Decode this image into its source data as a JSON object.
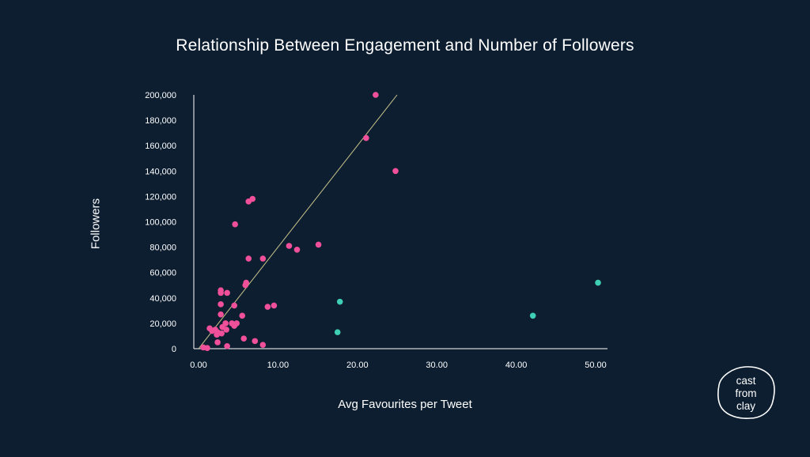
{
  "chart_data": {
    "type": "scatter",
    "title": "Relationship Between Engagement and Number of Followers",
    "xlabel": "Avg Favourites per Tweet",
    "ylabel": "Followers",
    "xlim": [
      0,
      50
    ],
    "ylim": [
      0,
      200000
    ],
    "x_ticks": [
      "0.00",
      "10.00",
      "20.00",
      "30.00",
      "40.00",
      "50.00"
    ],
    "y_ticks": [
      "0",
      "20,000",
      "40,000",
      "60,000",
      "80,000",
      "100,000",
      "120,000",
      "140,000",
      "160,000",
      "180,000",
      "200,000"
    ],
    "trendline": {
      "from": [
        0,
        0
      ],
      "to": [
        25,
        200000
      ],
      "color": "#c9c48a"
    },
    "series": [
      {
        "name": "pink",
        "color": "#f04f9a",
        "points": [
          [
            22.3,
            200000
          ],
          [
            21.1,
            166000
          ],
          [
            24.8,
            140000
          ],
          [
            6.8,
            118000
          ],
          [
            6.3,
            116000
          ],
          [
            4.6,
            98000
          ],
          [
            15.1,
            82000
          ],
          [
            11.4,
            81000
          ],
          [
            12.4,
            78000
          ],
          [
            8.1,
            71000
          ],
          [
            6.3,
            71000
          ],
          [
            6.0,
            52000
          ],
          [
            5.9,
            50000
          ],
          [
            2.8,
            46000
          ],
          [
            2.8,
            44000
          ],
          [
            3.6,
            44000
          ],
          [
            2.8,
            35000
          ],
          [
            4.5,
            34000
          ],
          [
            9.5,
            34000
          ],
          [
            8.7,
            33000
          ],
          [
            2.8,
            27000
          ],
          [
            5.5,
            26000
          ],
          [
            3.4,
            20000
          ],
          [
            4.2,
            20000
          ],
          [
            4.8,
            20000
          ],
          [
            4.5,
            18000
          ],
          [
            3.0,
            17000
          ],
          [
            1.4,
            16000
          ],
          [
            2.1,
            15000
          ],
          [
            3.5,
            15000
          ],
          [
            1.7,
            14000
          ],
          [
            2.4,
            13000
          ],
          [
            2.9,
            12000
          ],
          [
            2.3,
            11000
          ],
          [
            5.7,
            8000
          ],
          [
            7.1,
            6000
          ],
          [
            2.4,
            5000
          ],
          [
            8.1,
            3000
          ],
          [
            3.6,
            2000
          ],
          [
            0.6,
            1000
          ],
          [
            1.1,
            500
          ]
        ]
      },
      {
        "name": "teal",
        "color": "#3ecfb5",
        "points": [
          [
            50.3,
            52000
          ],
          [
            17.8,
            37000
          ],
          [
            42.1,
            26000
          ],
          [
            17.5,
            13000
          ]
        ]
      }
    ]
  },
  "logo": {
    "lines": [
      "cast",
      "from",
      "clay"
    ]
  }
}
